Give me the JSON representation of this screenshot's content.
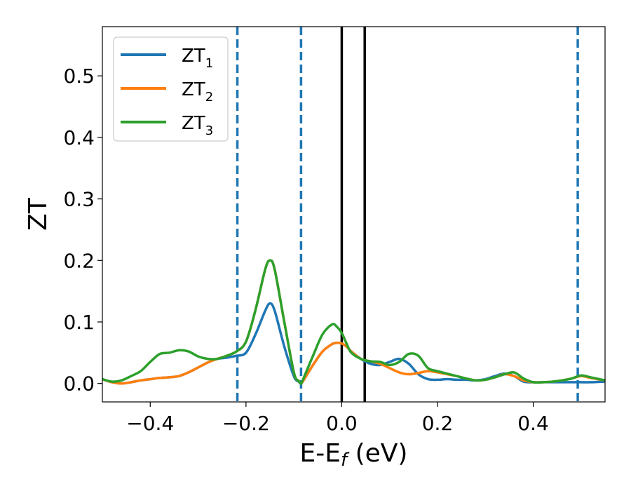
{
  "chart_data": {
    "type": "line",
    "xlabel": {
      "main": "E-E",
      "sub": "f",
      "unit": " (eV)"
    },
    "ylabel": "ZT",
    "xlim": [
      -0.5,
      0.55
    ],
    "ylim": [
      -0.03,
      0.58
    ],
    "xticks": [
      -0.4,
      -0.2,
      0.0,
      0.2,
      0.4
    ],
    "xtick_labels": [
      "−0.4",
      "−0.2",
      "0.0",
      "0.2",
      "0.4"
    ],
    "yticks": [
      0.0,
      0.1,
      0.2,
      0.3,
      0.4,
      0.5
    ],
    "ytick_labels": [
      "0.0",
      "0.1",
      "0.2",
      "0.3",
      "0.4",
      "0.5"
    ],
    "grid": false,
    "legend_position": "top-left",
    "vlines_dashed": {
      "x": [
        -0.218,
        -0.085,
        0.493
      ],
      "color": "#1f77b4"
    },
    "vlines_solid": {
      "x": [
        0.0,
        0.048
      ],
      "color": "#000000"
    },
    "series": [
      {
        "name": "ZT",
        "sub": "1",
        "color": "#1f77b4",
        "x": [
          -0.5,
          -0.48,
          -0.46,
          -0.44,
          -0.42,
          -0.4,
          -0.38,
          -0.36,
          -0.34,
          -0.32,
          -0.3,
          -0.28,
          -0.26,
          -0.24,
          -0.22,
          -0.2,
          -0.18,
          -0.16,
          -0.15,
          -0.14,
          -0.12,
          -0.1,
          -0.09,
          -0.085,
          -0.08,
          -0.06,
          -0.04,
          -0.02,
          -0.01,
          0.0,
          0.01,
          0.02,
          0.04,
          0.06,
          0.08,
          0.1,
          0.12,
          0.14,
          0.16,
          0.18,
          0.2,
          0.22,
          0.24,
          0.26,
          0.28,
          0.3,
          0.32,
          0.34,
          0.36,
          0.38,
          0.4,
          0.42,
          0.44,
          0.46,
          0.48,
          0.5,
          0.52,
          0.55
        ],
        "y": [
          0.007,
          0.002,
          0.0,
          0.002,
          0.005,
          0.007,
          0.009,
          0.01,
          0.012,
          0.018,
          0.026,
          0.034,
          0.04,
          0.042,
          0.045,
          0.05,
          0.08,
          0.118,
          0.13,
          0.118,
          0.06,
          0.012,
          0.003,
          0.0,
          0.005,
          0.03,
          0.052,
          0.064,
          0.066,
          0.065,
          0.06,
          0.052,
          0.04,
          0.032,
          0.03,
          0.035,
          0.04,
          0.032,
          0.015,
          0.007,
          0.006,
          0.007,
          0.006,
          0.006,
          0.005,
          0.007,
          0.012,
          0.016,
          0.012,
          0.003,
          0.002,
          0.002,
          0.002,
          0.002,
          0.002,
          0.002,
          0.002,
          0.003
        ]
      },
      {
        "name": "ZT",
        "sub": "2",
        "color": "#ff7f0e",
        "x": [
          -0.5,
          -0.48,
          -0.46,
          -0.44,
          -0.42,
          -0.4,
          -0.38,
          -0.36,
          -0.34,
          -0.32,
          -0.3,
          -0.28,
          -0.26,
          -0.24,
          -0.22,
          -0.2,
          -0.18,
          -0.16,
          -0.15,
          -0.14,
          -0.12,
          -0.1,
          -0.09,
          -0.085,
          -0.08,
          -0.06,
          -0.04,
          -0.02,
          -0.01,
          0.0,
          0.01,
          0.02,
          0.04,
          0.06,
          0.08,
          0.1,
          0.12,
          0.14,
          0.16,
          0.18,
          0.2,
          0.22,
          0.24,
          0.26,
          0.28,
          0.3,
          0.32,
          0.34,
          0.36,
          0.38,
          0.4,
          0.42,
          0.44,
          0.46,
          0.48,
          0.5,
          0.52,
          0.55
        ],
        "y": [
          0.007,
          0.002,
          0.0,
          0.002,
          0.005,
          0.007,
          0.009,
          0.01,
          0.012,
          0.018,
          0.026,
          0.034,
          0.04,
          0.045,
          0.052,
          0.068,
          0.12,
          0.185,
          0.2,
          0.185,
          0.1,
          0.018,
          0.004,
          0.0,
          0.005,
          0.03,
          0.052,
          0.064,
          0.066,
          0.065,
          0.06,
          0.052,
          0.04,
          0.036,
          0.032,
          0.025,
          0.018,
          0.015,
          0.017,
          0.02,
          0.018,
          0.015,
          0.012,
          0.008,
          0.005,
          0.006,
          0.01,
          0.015,
          0.012,
          0.005,
          0.002,
          0.002,
          0.003,
          0.005,
          0.008,
          0.012,
          0.009,
          0.005
        ]
      },
      {
        "name": "ZT",
        "sub": "3",
        "color": "#2ca02c",
        "x": [
          -0.5,
          -0.48,
          -0.46,
          -0.44,
          -0.42,
          -0.4,
          -0.38,
          -0.36,
          -0.34,
          -0.32,
          -0.3,
          -0.28,
          -0.26,
          -0.24,
          -0.22,
          -0.2,
          -0.18,
          -0.16,
          -0.15,
          -0.14,
          -0.12,
          -0.1,
          -0.09,
          -0.085,
          -0.08,
          -0.06,
          -0.04,
          -0.02,
          -0.01,
          0.0,
          0.01,
          0.02,
          0.04,
          0.06,
          0.08,
          0.1,
          0.12,
          0.14,
          0.16,
          0.18,
          0.2,
          0.22,
          0.24,
          0.26,
          0.28,
          0.3,
          0.32,
          0.34,
          0.36,
          0.38,
          0.4,
          0.42,
          0.44,
          0.46,
          0.48,
          0.5,
          0.52,
          0.55
        ],
        "y": [
          0.007,
          0.003,
          0.005,
          0.012,
          0.02,
          0.035,
          0.048,
          0.05,
          0.054,
          0.052,
          0.044,
          0.04,
          0.04,
          0.045,
          0.052,
          0.068,
          0.12,
          0.185,
          0.2,
          0.185,
          0.1,
          0.018,
          0.004,
          0.0,
          0.008,
          0.045,
          0.08,
          0.096,
          0.092,
          0.082,
          0.065,
          0.05,
          0.04,
          0.036,
          0.035,
          0.03,
          0.035,
          0.048,
          0.045,
          0.025,
          0.02,
          0.016,
          0.012,
          0.008,
          0.005,
          0.006,
          0.01,
          0.015,
          0.018,
          0.008,
          0.002,
          0.002,
          0.003,
          0.005,
          0.008,
          0.013,
          0.01,
          0.005
        ]
      }
    ]
  }
}
